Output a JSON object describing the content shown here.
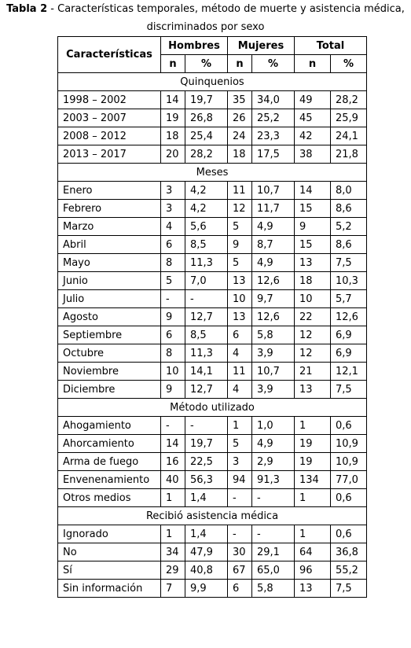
{
  "caption": {
    "label": "Tabla 2",
    "text": " - Características temporales, método de muerte y asistencia médica,",
    "line2": "discriminados por sexo"
  },
  "header": {
    "col1": "Características",
    "groups": [
      "Hombres",
      "Mujeres",
      "Total"
    ],
    "sub": [
      "n",
      "%",
      "n",
      "%",
      "n",
      "%"
    ]
  },
  "sections": [
    {
      "title": "Quinquenios",
      "rows": [
        [
          "1998 – 2002",
          "14",
          "19,7",
          "35",
          "34,0",
          "49",
          "28,2"
        ],
        [
          "2003 – 2007",
          "19",
          "26,8",
          "26",
          "25,2",
          "45",
          "25,9"
        ],
        [
          "2008 – 2012",
          "18",
          "25,4",
          "24",
          "23,3",
          "42",
          "24,1"
        ],
        [
          "2013 – 2017",
          "20",
          "28,2",
          "18",
          "17,5",
          "38",
          "21,8"
        ]
      ]
    },
    {
      "title": "Meses",
      "rows": [
        [
          "Enero",
          "3",
          "4,2",
          "11",
          "10,7",
          "14",
          "8,0"
        ],
        [
          "Febrero",
          "3",
          "4,2",
          "12",
          "11,7",
          "15",
          "8,6"
        ],
        [
          "Marzo",
          "4",
          "5,6",
          "5",
          "4,9",
          "9",
          "5,2"
        ],
        [
          "Abril",
          "6",
          "8,5",
          "9",
          "8,7",
          "15",
          "8,6"
        ],
        [
          "Mayo",
          "8",
          "11,3",
          "5",
          "4,9",
          "13",
          "7,5"
        ],
        [
          "Junio",
          "5",
          "7,0",
          "13",
          "12,6",
          "18",
          "10,3"
        ],
        [
          "Julio",
          "-",
          "-",
          "10",
          "9,7",
          "10",
          "5,7"
        ],
        [
          "Agosto",
          "9",
          "12,7",
          "13",
          "12,6",
          "22",
          "12,6"
        ],
        [
          "Septiembre",
          "6",
          "8,5",
          "6",
          "5,8",
          "12",
          "6,9"
        ],
        [
          "Octubre",
          "8",
          "11,3",
          "4",
          "3,9",
          "12",
          "6,9"
        ],
        [
          "Noviembre",
          "10",
          "14,1",
          "11",
          "10,7",
          "21",
          "12,1"
        ],
        [
          "Diciembre",
          "9",
          "12,7",
          "4",
          "3,9",
          "13",
          "7,5"
        ]
      ]
    },
    {
      "title": "Método utilizado",
      "rows": [
        [
          "Ahogamiento",
          "-",
          "-",
          "1",
          "1,0",
          "1",
          "0,6"
        ],
        [
          "Ahorcamiento",
          "14",
          "19,7",
          "5",
          "4,9",
          "19",
          "10,9"
        ],
        [
          "Arma de fuego",
          "16",
          "22,5",
          "3",
          "2,9",
          "19",
          "10,9"
        ],
        [
          "Envenenamiento",
          "40",
          "56,3",
          "94",
          "91,3",
          "134",
          "77,0"
        ],
        [
          "Otros medios",
          "1",
          "1,4",
          "-",
          "-",
          "1",
          "0,6"
        ]
      ]
    },
    {
      "title": "Recibió asistencia médica",
      "rows": [
        [
          "Ignorado",
          "1",
          "1,4",
          "-",
          "-",
          "1",
          "0,6"
        ],
        [
          "No",
          "34",
          "47,9",
          "30",
          "29,1",
          "64",
          "36,8"
        ],
        [
          "Sí",
          "29",
          "40,8",
          "67",
          "65,0",
          "96",
          "55,2"
        ],
        [
          "Sin información",
          "7",
          "9,9",
          "6",
          "5,8",
          "13",
          "7,5"
        ]
      ]
    }
  ]
}
